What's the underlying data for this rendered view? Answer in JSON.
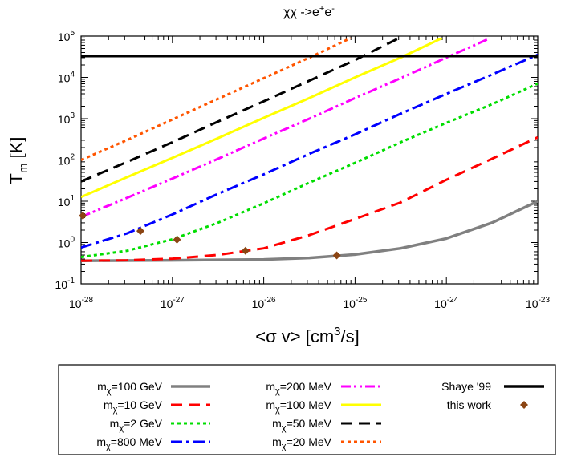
{
  "chart_data": {
    "type": "line",
    "title": "χχ ->e+e-",
    "title_parts": {
      "base": "χχ ->e",
      "sup1": "+",
      "mid": "e",
      "sup2": "-"
    },
    "xlabel": "<σ v> [cm3/s]",
    "xlabel_parts": {
      "pre": "<σ v> [cm",
      "sup": "3",
      "post": "/s]"
    },
    "ylabel": "Tm [K]",
    "ylabel_parts": {
      "base": "T",
      "sub": "m",
      "post": " [K]"
    },
    "xscale": "log",
    "yscale": "log",
    "xlim_exp": [
      -28,
      -23
    ],
    "ylim_exp": [
      -1,
      5
    ],
    "x_ticks": [
      {
        "exp": -28,
        "label": "-28"
      },
      {
        "exp": -27,
        "label": "-27"
      },
      {
        "exp": -26,
        "label": "-26"
      },
      {
        "exp": -25,
        "label": "-25"
      },
      {
        "exp": -24,
        "label": "-24"
      },
      {
        "exp": -23,
        "label": "-23"
      }
    ],
    "y_ticks": [
      {
        "exp": -1,
        "label": "-1"
      },
      {
        "exp": 0,
        "label": "0"
      },
      {
        "exp": 1,
        "label": "1"
      },
      {
        "exp": 2,
        "label": "2"
      },
      {
        "exp": 3,
        "label": "3"
      },
      {
        "exp": 4,
        "label": "4"
      },
      {
        "exp": 5,
        "label": "5"
      }
    ],
    "tick_base": "10",
    "series": [
      {
        "name": "mχ=100 GeV",
        "label_pre": "m",
        "label_sub": "χ",
        "label_post": "=100 GeV",
        "color": "#808080",
        "style": "solid",
        "width": 3.5,
        "log_x": [
          -28,
          -27,
          -26.5,
          -26,
          -25.5,
          -25,
          -24.5,
          -24,
          -23.5,
          -23
        ],
        "log_y": [
          -0.44,
          -0.43,
          -0.42,
          -0.41,
          -0.37,
          -0.29,
          -0.14,
          0.1,
          0.48,
          1.0
        ]
      },
      {
        "name": "mχ=10 GeV",
        "label_pre": "m",
        "label_sub": "χ",
        "label_post": "=10 GeV",
        "color": "#ff0000",
        "style": "dash",
        "width": 3,
        "log_x": [
          -28,
          -27.5,
          -27,
          -26.5,
          -26,
          -25.5,
          -25,
          -24.5,
          -24,
          -23.5,
          -23
        ],
        "log_y": [
          -0.44,
          -0.43,
          -0.39,
          -0.3,
          -0.14,
          0.18,
          0.57,
          0.97,
          1.52,
          2.03,
          2.55
        ]
      },
      {
        "name": "mχ=2 GeV",
        "label_pre": "m",
        "label_sub": "χ",
        "label_post": "=2 GeV",
        "color": "#00dd00",
        "style": "dot",
        "width": 3,
        "log_x": [
          -28,
          -27.5,
          -27,
          -26.5,
          -26,
          -25.5,
          -25,
          -24.5,
          -24,
          -23.5,
          -23
        ],
        "log_y": [
          -0.35,
          -0.2,
          0.08,
          0.48,
          0.95,
          1.45,
          1.93,
          2.43,
          2.9,
          3.35,
          3.85
        ]
      },
      {
        "name": "mχ=800 MeV",
        "label_pre": "m",
        "label_sub": "χ",
        "label_post": "=800 MeV",
        "color": "#0000ff",
        "style": "dashdot",
        "width": 3,
        "log_x": [
          -28,
          -27.5,
          -27,
          -26.5,
          -26,
          -25.5,
          -25,
          -24.5,
          -24,
          -23.5,
          -23
        ],
        "log_y": [
          -0.12,
          0.22,
          0.68,
          1.18,
          1.65,
          2.15,
          2.62,
          3.12,
          3.6,
          4.07,
          4.55
        ]
      },
      {
        "name": "mχ=200 MeV",
        "label_pre": "m",
        "label_sub": "χ",
        "label_post": "=200 MeV",
        "color": "#ff00ff",
        "style": "dashdotdot",
        "width": 3,
        "log_x": [
          -28,
          -27.5,
          -27,
          -26.5,
          -26,
          -25.5,
          -25,
          -24.5,
          -24,
          -23.55
        ],
        "log_y": [
          0.62,
          1.08,
          1.55,
          2.03,
          2.52,
          3.0,
          3.5,
          3.98,
          4.48,
          4.92
        ]
      },
      {
        "name": "mχ=100 MeV",
        "label_pre": "m",
        "label_sub": "χ",
        "label_post": "=100 MeV",
        "color": "#ffff00",
        "style": "solid",
        "width": 3,
        "log_x": [
          -28,
          -27.5,
          -27,
          -26.5,
          -26,
          -25.5,
          -25,
          -24.5,
          -24.05
        ],
        "log_y": [
          1.1,
          1.58,
          2.05,
          2.53,
          3.02,
          3.5,
          4.0,
          4.48,
          4.95
        ]
      },
      {
        "name": "mχ=50 MeV",
        "label_pre": "m",
        "label_sub": "χ",
        "label_post": "=50 MeV",
        "color": "#000000",
        "style": "dash",
        "width": 3,
        "log_x": [
          -28,
          -27.5,
          -27,
          -26.5,
          -26,
          -25.5,
          -25,
          -24.5
        ],
        "log_y": [
          1.48,
          1.95,
          2.43,
          2.93,
          3.42,
          3.92,
          4.42,
          4.97
        ]
      },
      {
        "name": "mχ=20 MeV",
        "label_pre": "m",
        "label_sub": "χ",
        "label_post": "=20 MeV",
        "color": "#ff5500",
        "style": "dot",
        "width": 3,
        "log_x": [
          -28,
          -27.5,
          -27,
          -26.5,
          -26,
          -25.5,
          -25.05
        ],
        "log_y": [
          2.0,
          2.48,
          2.98,
          3.48,
          3.98,
          4.48,
          4.95
        ]
      },
      {
        "name": "Shaye '99",
        "label_pre": "Shaye '99",
        "label_sub": "",
        "label_post": "",
        "color": "#000000",
        "style": "solid",
        "width": 3.5,
        "log_x": [
          -28,
          -23
        ],
        "log_y": [
          4.52,
          4.52
        ]
      }
    ],
    "points": {
      "name": "this work",
      "color": "#8b4513",
      "marker": "diamond",
      "log_x": [
        -27.98,
        -27.35,
        -26.95,
        -26.2,
        -25.2
      ],
      "log_y": [
        0.65,
        0.28,
        0.07,
        -0.2,
        -0.31
      ]
    },
    "legend": {
      "placement": "bottom",
      "columns": 3
    }
  }
}
